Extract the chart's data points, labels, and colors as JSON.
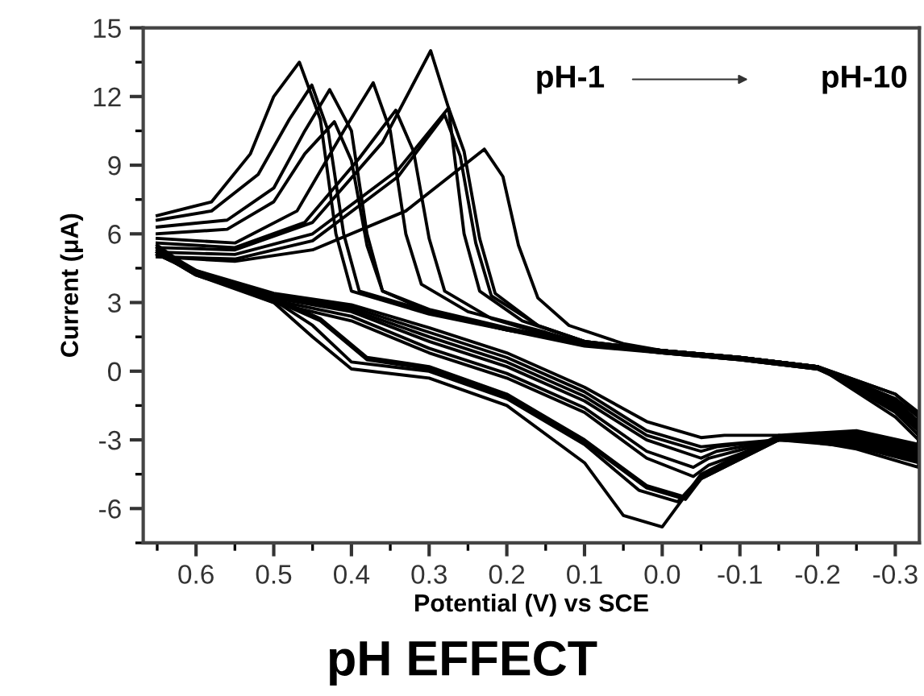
{
  "chart_data": {
    "type": "line",
    "title": "pH EFFECT",
    "xlabel": "Potential (V) vs SCE",
    "ylabel": "Current (μA)",
    "xlim": [
      0.668,
      -0.331
    ],
    "ylim": [
      -7.5,
      15
    ],
    "xticks": [
      0.6,
      0.5,
      0.4,
      0.3,
      0.2,
      0.1,
      {
        "value": 0,
        "label": "0.0"
      },
      -0.1,
      -0.2,
      -0.3
    ],
    "yticks": [
      -6,
      -3,
      0,
      3,
      6,
      9,
      12,
      15
    ],
    "grid": false,
    "legend": false,
    "marker": "none",
    "line_style": "solid",
    "annotations": [
      "pH-1",
      "pH-10"
    ],
    "series": [
      {
        "color": "#000000",
        "x": [
          0.65,
          0.58,
          0.53,
          0.5,
          0.467,
          0.44,
          0.42,
          0.4,
          0.3,
          0.2,
          0.1,
          0,
          -0.1,
          -0.2,
          -0.3,
          -0.33,
          -0.33,
          -0.25,
          -0.15,
          -0.05,
          0.0,
          0.05,
          0.1,
          0.2,
          0.3,
          0.4,
          0.45,
          0.5,
          0.6,
          0.65
        ],
        "values": [
          6.8,
          7.4,
          9.5,
          12,
          13.5,
          11,
          6,
          3.5,
          2.5,
          1.8,
          1.2,
          0.9,
          0.6,
          0.2,
          -1.0,
          -1.8,
          -3.2,
          -2.6,
          -2.8,
          -4.5,
          -6.8,
          -6.3,
          -4,
          -1.5,
          -0.3,
          0.1,
          1.5,
          3,
          4.3,
          5.5
        ]
      },
      {
        "color": "#000000",
        "x": [
          0.65,
          0.58,
          0.52,
          0.48,
          0.451,
          0.43,
          0.41,
          0.39,
          0.3,
          0.2,
          0.1,
          0,
          -0.1,
          -0.2,
          -0.3,
          -0.33,
          -0.33,
          -0.25,
          -0.15,
          -0.05,
          -0.02,
          0.03,
          0.1,
          0.2,
          0.3,
          0.4,
          0.45,
          0.5,
          0.6,
          0.65
        ],
        "values": [
          6.6,
          7.0,
          8.6,
          11,
          12.5,
          10.5,
          6,
          3.5,
          2.6,
          1.8,
          1.2,
          0.9,
          0.6,
          0.2,
          -1.0,
          -1.9,
          -3.3,
          -2.7,
          -2.9,
          -4.6,
          -5.7,
          -5.2,
          -3.2,
          -1.2,
          0,
          0.4,
          2,
          3.1,
          4.3,
          5.4
        ]
      },
      {
        "color": "#000000",
        "x": [
          0.65,
          0.56,
          0.5,
          0.46,
          0.428,
          0.4,
          0.38,
          0.36,
          0.3,
          0.2,
          0.1,
          0,
          -0.1,
          -0.2,
          -0.3,
          -0.33,
          -0.33,
          -0.25,
          -0.15,
          -0.05,
          -0.03,
          0.02,
          0.1,
          0.2,
          0.3,
          0.38,
          0.44,
          0.5,
          0.6,
          0.65
        ],
        "values": [
          6.3,
          6.6,
          8,
          10.5,
          12.3,
          10.5,
          6,
          3.5,
          2.7,
          1.9,
          1.2,
          0.9,
          0.6,
          0.2,
          -1.2,
          -2.0,
          -3.4,
          -2.8,
          -3.0,
          -4.7,
          -5.5,
          -5.0,
          -3.0,
          -1.0,
          0.2,
          0.6,
          2.3,
          3.2,
          4.4,
          5.4
        ]
      },
      {
        "color": "#000000",
        "x": [
          0.65,
          0.56,
          0.5,
          0.46,
          0.422,
          0.4,
          0.38,
          0.36,
          0.3,
          0.2,
          0.1,
          0,
          -0.1,
          -0.2,
          -0.3,
          -0.33,
          -0.33,
          -0.25,
          -0.15,
          -0.05,
          -0.03,
          0.02,
          0.1,
          0.2,
          0.3,
          0.38,
          0.44,
          0.5,
          0.6,
          0.65
        ],
        "values": [
          6.0,
          6.2,
          7.4,
          9.5,
          10.9,
          9.2,
          5.5,
          3.5,
          2.6,
          1.8,
          1.1,
          0.8,
          0.5,
          0.1,
          -1.3,
          -2.2,
          -3.5,
          -2.9,
          -3.0,
          -4.7,
          -5.6,
          -5.1,
          -3.1,
          -1.1,
          0.1,
          0.5,
          2.2,
          3.1,
          4.3,
          5.3
        ]
      },
      {
        "color": "#000000",
        "x": [
          0.65,
          0.55,
          0.47,
          0.41,
          0.372,
          0.35,
          0.33,
          0.31,
          0.25,
          0.15,
          0.1,
          0,
          -0.1,
          -0.2,
          -0.3,
          -0.33,
          -0.33,
          -0.25,
          -0.15,
          -0.06,
          -0.04,
          0.02,
          0.1,
          0.2,
          0.3,
          0.4,
          0.5,
          0.6,
          0.65
        ],
        "values": [
          5.8,
          5.6,
          7,
          10.5,
          12.6,
          10.5,
          6,
          3.8,
          2.6,
          1.7,
          1.2,
          0.8,
          0.5,
          0.1,
          -1.4,
          -2.3,
          -3.6,
          -3.0,
          -3.0,
          -4.1,
          -4.6,
          -3.8,
          -1.8,
          -0.3,
          0.8,
          2.2,
          3.0,
          4.2,
          5.2
        ]
      },
      {
        "color": "#000000",
        "x": [
          0.65,
          0.55,
          0.46,
          0.39,
          0.343,
          0.32,
          0.3,
          0.28,
          0.22,
          0.15,
          0.1,
          0,
          -0.1,
          -0.2,
          -0.3,
          -0.33,
          -0.33,
          -0.25,
          -0.15,
          -0.06,
          -0.04,
          0.02,
          0.1,
          0.2,
          0.3,
          0.4,
          0.5,
          0.6,
          0.65
        ],
        "values": [
          5.6,
          5.4,
          6.5,
          9.3,
          11.4,
          9.6,
          5.8,
          3.5,
          2.3,
          1.6,
          1.2,
          0.8,
          0.5,
          0.1,
          -1.5,
          -2.4,
          -3.7,
          -3.0,
          -3.0,
          -3.8,
          -4.2,
          -3.5,
          -1.6,
          -0.1,
          1.0,
          2.4,
          3.1,
          4.2,
          5.2
        ]
      },
      {
        "color": "#000000",
        "x": [
          0.65,
          0.55,
          0.45,
          0.36,
          0.298,
          0.275,
          0.255,
          0.235,
          0.18,
          0.1,
          0,
          -0.1,
          -0.2,
          -0.3,
          -0.33,
          -0.33,
          -0.25,
          -0.15,
          -0.07,
          -0.05,
          0.02,
          0.1,
          0.2,
          0.3,
          0.4,
          0.5,
          0.6,
          0.65
        ],
        "values": [
          5.4,
          5.3,
          6.5,
          10,
          14,
          11.5,
          6,
          3.5,
          2.2,
          1.3,
          0.9,
          0.6,
          0.2,
          -1.6,
          -2.5,
          -3.8,
          -3.1,
          -3.0,
          -3.5,
          -3.8,
          -3.0,
          -1.3,
          0.2,
          1.3,
          2.6,
          3.2,
          4.3,
          5.2
        ]
      },
      {
        "color": "#000000",
        "x": [
          0.65,
          0.55,
          0.45,
          0.34,
          0.275,
          0.255,
          0.235,
          0.215,
          0.16,
          0.1,
          0,
          -0.1,
          -0.2,
          -0.3,
          -0.33,
          -0.33,
          -0.25,
          -0.15,
          -0.07,
          -0.05,
          0.02,
          0.1,
          0.2,
          0.3,
          0.4,
          0.5,
          0.6,
          0.65
        ],
        "values": [
          5.2,
          5.1,
          6.0,
          8.8,
          11.5,
          9.6,
          5.8,
          3.4,
          2.0,
          1.3,
          0.9,
          0.6,
          0.2,
          -1.7,
          -2.6,
          -3.9,
          -3.2,
          -3.0,
          -3.3,
          -3.5,
          -2.8,
          -1.1,
          0.4,
          1.5,
          2.7,
          3.2,
          4.3,
          5.1
        ]
      },
      {
        "color": "#000000",
        "x": [
          0.65,
          0.55,
          0.45,
          0.34,
          0.28,
          0.26,
          0.24,
          0.22,
          0.16,
          0.1,
          0,
          -0.1,
          -0.2,
          -0.3,
          -0.33,
          -0.33,
          -0.25,
          -0.15,
          -0.08,
          -0.05,
          0.02,
          0.1,
          0.2,
          0.3,
          0.4,
          0.5,
          0.6,
          0.65
        ],
        "values": [
          5.0,
          4.9,
          5.7,
          8.5,
          11.2,
          9.4,
          5.6,
          3.3,
          2.0,
          1.3,
          0.9,
          0.6,
          0.2,
          -1.8,
          -2.8,
          -4.0,
          -3.3,
          -3.0,
          -3.2,
          -3.3,
          -2.6,
          -0.9,
          0.6,
          1.7,
          2.8,
          3.3,
          4.3,
          5.1
        ]
      },
      {
        "color": "#000000",
        "x": [
          0.65,
          0.55,
          0.45,
          0.33,
          0.229,
          0.205,
          0.185,
          0.16,
          0.12,
          0.05,
          0,
          -0.1,
          -0.2,
          -0.3,
          -0.33,
          -0.33,
          -0.25,
          -0.15,
          -0.08,
          -0.05,
          0.02,
          0.1,
          0.2,
          0.3,
          0.4,
          0.5,
          0.6,
          0.65
        ],
        "values": [
          5.0,
          4.8,
          5.3,
          7.0,
          9.7,
          8.5,
          5.5,
          3.2,
          2.0,
          1.2,
          0.9,
          0.6,
          0.2,
          -2.0,
          -3.0,
          -4.2,
          -3.4,
          -2.8,
          -2.8,
          -2.9,
          -2.2,
          -0.7,
          0.8,
          1.9,
          2.9,
          3.4,
          4.4,
          5.1
        ]
      }
    ]
  }
}
